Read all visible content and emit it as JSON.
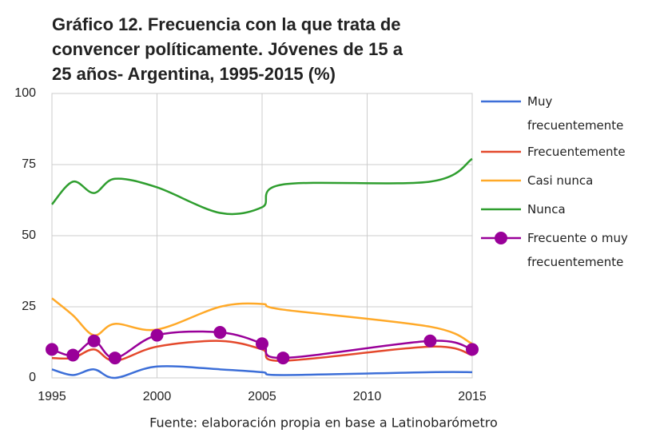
{
  "chart_data": {
    "type": "line",
    "title": "Gráfico 12. Frecuencia con la que trata de convencer políticamente. Jóvenes de 15 a 25 años- Argentina, 1995-2015 (%)",
    "source": "Fuente: elaboración propia en base a Latinobarómetro",
    "x": [
      1995,
      1996,
      1997,
      1998,
      2000,
      2003,
      2005,
      2006,
      2013,
      2015
    ],
    "xlim": [
      1995,
      2015
    ],
    "xticks": [
      1995,
      2000,
      2005,
      2010,
      2015
    ],
    "ylim": [
      0,
      100
    ],
    "yticks": [
      0,
      25,
      50,
      75,
      100
    ],
    "grid": true,
    "legend": "right",
    "series": [
      {
        "name": "Muy frecuentemente",
        "color": "#3d6fd8",
        "values": [
          3,
          1,
          3,
          0,
          4,
          3,
          2,
          1,
          2,
          2
        ]
      },
      {
        "name": "Frecuentemente",
        "color": "#e4492c",
        "values": [
          7,
          7,
          10,
          6,
          11,
          13,
          10,
          6,
          11,
          8
        ]
      },
      {
        "name": "Casi nunca",
        "color": "#ffa928",
        "values": [
          28,
          22,
          15,
          19,
          17,
          25,
          26,
          24,
          18,
          12
        ]
      },
      {
        "name": "Nunca",
        "color": "#2f9e2f",
        "values": [
          61,
          69,
          65,
          70,
          67,
          58,
          60,
          68,
          69,
          77
        ]
      },
      {
        "name": "Frecuente o muy frecuentemente",
        "color": "#990099",
        "marker": true,
        "values": [
          10,
          8,
          13,
          7,
          15,
          16,
          12,
          7,
          13,
          10
        ]
      }
    ]
  }
}
